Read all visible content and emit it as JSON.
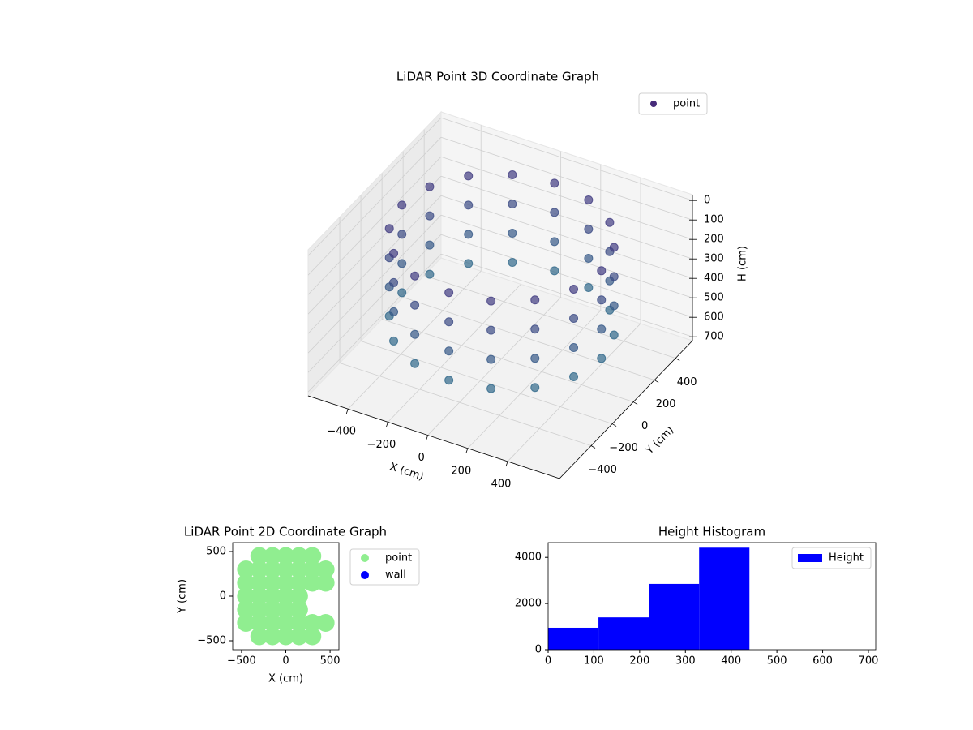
{
  "chart_data": [
    {
      "type": "scatter3d",
      "title": "LiDAR Point 3D Coordinate Graph",
      "xlabel": "X (cm)",
      "ylabel": "Y (cm)",
      "zlabel": "H (cm)",
      "xlim": [
        -600,
        660
      ],
      "ylim": [
        -700,
        560
      ],
      "zlim": [
        720,
        -30
      ],
      "xticks": [
        {
          "value": -400,
          "label": "−400"
        },
        {
          "value": -200,
          "label": "−200"
        },
        0,
        200,
        400
      ],
      "yticks": [
        {
          "value": -400,
          "label": "−400"
        },
        {
          "value": -200,
          "label": "−200"
        },
        0,
        200,
        400
      ],
      "zticks": [
        0,
        100,
        200,
        300,
        400,
        500,
        600,
        700
      ],
      "colors": [
        "#2a788e",
        "#46307e"
      ],
      "legend": "upper right",
      "series": [
        {
          "name": "point",
          "color": "#472c7a",
          "x": [
            500,
            462,
            354,
            191,
            0,
            -191,
            -354,
            -462,
            -500,
            -462,
            -354,
            -191,
            0,
            191,
            354,
            462,
            500,
            462,
            354,
            191,
            0,
            -191,
            -354,
            -462,
            -500,
            -462,
            -354,
            -191,
            0,
            191,
            354,
            462,
            500,
            462,
            354,
            191,
            0,
            -191,
            -354,
            -462,
            -500,
            -462,
            -354,
            -191,
            0,
            191,
            354,
            462,
            500,
            462,
            354,
            191,
            0,
            -191,
            -354,
            -462,
            -500,
            -462,
            -354,
            -191,
            0,
            191,
            354,
            462
          ],
          "y": [
            0,
            191,
            354,
            462,
            500,
            462,
            354,
            191,
            0,
            -191,
            -354,
            -462,
            -500,
            -462,
            -354,
            -191,
            0,
            191,
            354,
            462,
            500,
            462,
            354,
            191,
            0,
            -191,
            -354,
            -462,
            -500,
            -462,
            -354,
            -191,
            0,
            191,
            354,
            462,
            500,
            462,
            354,
            191,
            0,
            -191,
            -354,
            -462,
            -500,
            -462,
            -354,
            -191,
            0,
            191,
            354,
            462,
            500,
            462,
            354,
            191,
            0,
            -191,
            -354,
            -462,
            -500,
            -462,
            -354,
            -191
          ],
          "h": [
            100,
            100,
            100,
            100,
            100,
            100,
            100,
            100,
            100,
            100,
            100,
            100,
            100,
            100,
            100,
            100,
            250,
            250,
            250,
            250,
            250,
            250,
            250,
            250,
            250,
            250,
            250,
            250,
            250,
            250,
            250,
            250,
            400,
            400,
            400,
            400,
            400,
            400,
            400,
            400,
            400,
            400,
            400,
            400,
            400,
            400,
            400,
            400,
            550,
            550,
            550,
            550,
            550,
            550,
            550,
            550,
            550,
            550,
            550,
            550,
            550,
            550,
            550,
            550
          ]
        }
      ]
    },
    {
      "type": "scatter",
      "title": "LiDAR Point 2D Coordinate Graph",
      "xlabel": "X (cm)",
      "ylabel": "Y (cm)",
      "xlim": [
        -600,
        600
      ],
      "ylim": [
        -600,
        600
      ],
      "xticks": [
        {
          "value": -500,
          "label": "−500"
        },
        0,
        500
      ],
      "yticks": [
        {
          "value": -500,
          "label": "−500"
        },
        0,
        500
      ],
      "legend": "outside right",
      "series": [
        {
          "name": "point",
          "color": "#90ee90",
          "x": [
            -300,
            -150,
            0,
            150,
            300,
            -450,
            -300,
            -150,
            0,
            150,
            300,
            450,
            -450,
            -300,
            -150,
            0,
            150,
            300,
            450,
            -450,
            -300,
            -150,
            0,
            150,
            -450,
            -300,
            -150,
            0,
            150,
            -450,
            -300,
            -150,
            0,
            150,
            300,
            450,
            -300,
            -150,
            0,
            150,
            300
          ],
          "y": [
            450,
            450,
            450,
            450,
            450,
            300,
            300,
            300,
            300,
            300,
            300,
            300,
            150,
            150,
            150,
            150,
            150,
            150,
            150,
            0,
            0,
            0,
            0,
            0,
            -150,
            -150,
            -150,
            -150,
            -150,
            -300,
            -300,
            -300,
            -300,
            -300,
            -300,
            -300,
            -450,
            -450,
            -450,
            -450,
            -450
          ]
        },
        {
          "name": "wall",
          "color": "#0000ff",
          "x": [],
          "y": []
        }
      ]
    },
    {
      "type": "histogram",
      "title": "Height Histogram",
      "bins": [
        0,
        110,
        220,
        330,
        440,
        550,
        660
      ],
      "values": [
        950,
        1400,
        2850,
        4420,
        0,
        0
      ],
      "color": "#0000ff",
      "name": "Height",
      "xlim": [
        0,
        716
      ],
      "ylim": [
        0,
        4640
      ],
      "xticks": [
        0,
        100,
        200,
        300,
        400,
        500,
        600,
        700
      ],
      "yticks": [
        0,
        2000,
        4000
      ],
      "legend": "upper right"
    }
  ]
}
